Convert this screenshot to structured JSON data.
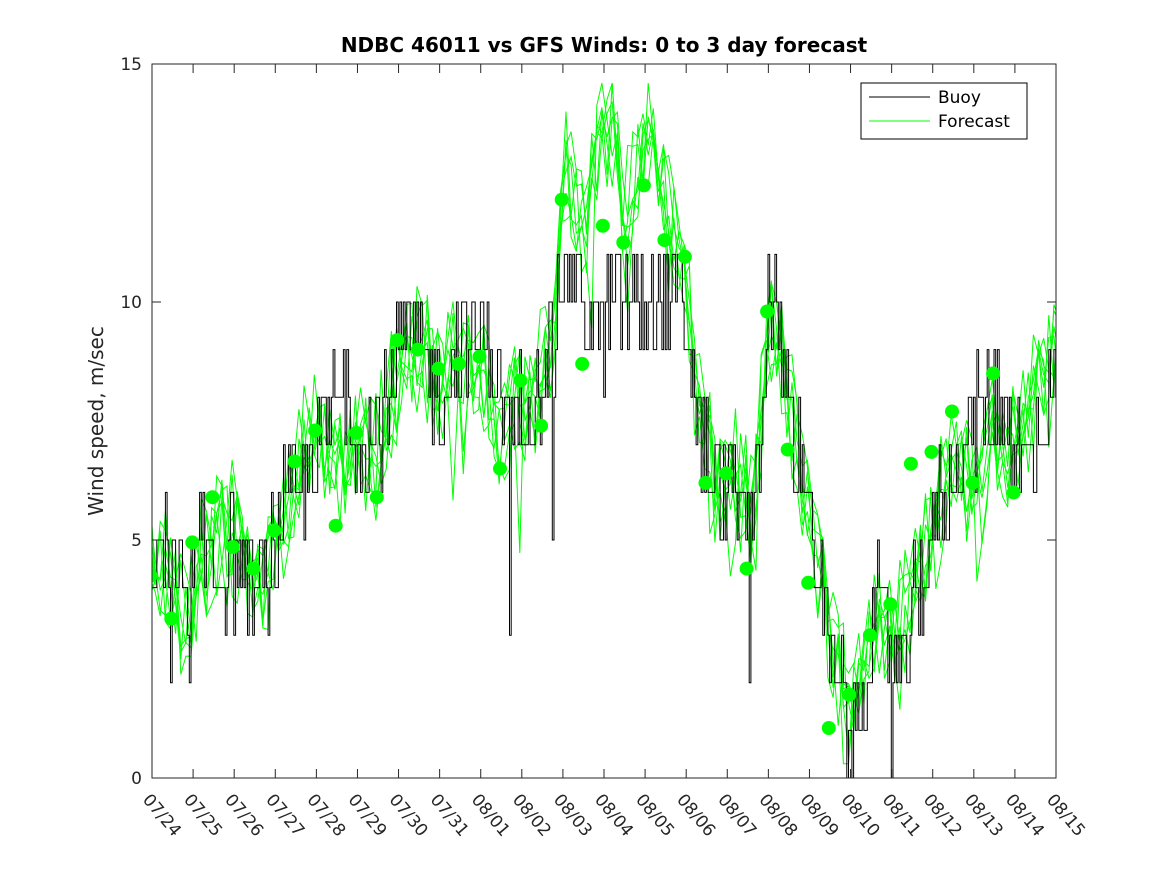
{
  "chart_data": {
    "type": "line",
    "title": "NDBC 46011 vs GFS Winds: 0 to 3 day forecast",
    "xlabel": "",
    "ylabel": "Wind speed, m/sec",
    "xlim": [
      0,
      22
    ],
    "ylim": [
      0,
      15
    ],
    "yticks": [
      0,
      5,
      10,
      15
    ],
    "x_tick_labels": [
      "07/24",
      "07/25",
      "07/26",
      "07/27",
      "07/28",
      "07/29",
      "07/30",
      "07/31",
      "08/01",
      "08/02",
      "08/03",
      "08/04",
      "08/05",
      "08/06",
      "08/07",
      "08/08",
      "08/09",
      "08/10",
      "08/11",
      "08/12",
      "08/13",
      "08/14",
      "08/15"
    ],
    "grid": false,
    "legend": {
      "location": "top-right",
      "entries": [
        "Buoy",
        "Forecast"
      ]
    },
    "colors": {
      "buoy": "#000000",
      "forecast": "#00ff00",
      "marker": "#00ff00"
    },
    "x_units": "days since 07/24 00:00",
    "buoy_anchors": [
      [
        -0.3,
        5
      ],
      [
        0.2,
        5
      ],
      [
        0.6,
        4
      ],
      [
        0.9,
        3.5
      ],
      [
        1.3,
        5
      ],
      [
        1.7,
        4.5
      ],
      [
        2.2,
        4.5
      ],
      [
        2.6,
        3.8
      ],
      [
        3.2,
        5.5
      ],
      [
        3.7,
        6
      ],
      [
        4,
        7
      ],
      [
        4.3,
        7.5
      ],
      [
        4.7,
        8
      ],
      [
        5.2,
        7
      ],
      [
        5.6,
        7.5
      ],
      [
        6,
        9
      ],
      [
        6.5,
        9
      ],
      [
        7,
        8
      ],
      [
        7.4,
        9
      ],
      [
        7.8,
        9
      ],
      [
        8.3,
        9
      ],
      [
        8.7,
        7
      ],
      [
        9.1,
        8
      ],
      [
        9.5,
        8.5
      ],
      [
        9.8,
        9.2
      ],
      [
        10,
        11
      ],
      [
        10.2,
        11
      ],
      [
        10.5,
        10
      ],
      [
        10.8,
        9
      ],
      [
        11.2,
        10
      ],
      [
        11.6,
        10
      ],
      [
        12,
        10
      ],
      [
        12.4,
        10
      ],
      [
        12.8,
        10
      ],
      [
        13.1,
        9
      ],
      [
        13.4,
        7
      ],
      [
        13.8,
        6
      ],
      [
        14.2,
        6
      ],
      [
        14.5,
        5
      ],
      [
        14.8,
        7
      ],
      [
        15,
        10
      ],
      [
        15.3,
        9
      ],
      [
        15.6,
        7
      ],
      [
        15.9,
        6.5
      ],
      [
        16.2,
        4
      ],
      [
        16.5,
        2.5
      ],
      [
        16.8,
        1.5
      ],
      [
        17.1,
        1
      ],
      [
        17.4,
        2.5
      ],
      [
        17.7,
        3.5
      ],
      [
        18,
        2.5
      ],
      [
        18.3,
        2
      ],
      [
        18.6,
        4
      ],
      [
        19,
        5
      ],
      [
        19.4,
        6.5
      ],
      [
        19.8,
        7
      ],
      [
        20.2,
        7.5
      ],
      [
        20.6,
        8
      ],
      [
        21,
        7
      ],
      [
        21.3,
        6.5
      ],
      [
        21.6,
        7.5
      ],
      [
        22,
        8
      ]
    ],
    "forecast_anchors": [
      [
        -0.3,
        5
      ],
      [
        0.3,
        4.5
      ],
      [
        0.8,
        3.2
      ],
      [
        1.2,
        4.5
      ],
      [
        1.8,
        5.5
      ],
      [
        2.3,
        4.8
      ],
      [
        2.7,
        4.2
      ],
      [
        3.2,
        5.5
      ],
      [
        3.6,
        6.8
      ],
      [
        4,
        7.2
      ],
      [
        4.3,
        7
      ],
      [
        4.6,
        6.5
      ],
      [
        5,
        7.5
      ],
      [
        5.4,
        6.5
      ],
      [
        5.8,
        8
      ],
      [
        6.2,
        9
      ],
      [
        6.6,
        9
      ],
      [
        7,
        8.5
      ],
      [
        7.5,
        9
      ],
      [
        8,
        8.8
      ],
      [
        8.4,
        7
      ],
      [
        8.8,
        8
      ],
      [
        9.2,
        8
      ],
      [
        9.5,
        8.5
      ],
      [
        9.8,
        9.5
      ],
      [
        10,
        12.8
      ],
      [
        10.2,
        12.5
      ],
      [
        10.5,
        11.2
      ],
      [
        10.9,
        13.5
      ],
      [
        11.2,
        13.8
      ],
      [
        11.5,
        12
      ],
      [
        11.8,
        12.5
      ],
      [
        12.1,
        13.8
      ],
      [
        12.4,
        12.5
      ],
      [
        12.8,
        10.8
      ],
      [
        13.1,
        9.5
      ],
      [
        13.4,
        7.5
      ],
      [
        13.7,
        6.2
      ],
      [
        14,
        6
      ],
      [
        14.3,
        6.5
      ],
      [
        14.6,
        5.5
      ],
      [
        14.9,
        8.5
      ],
      [
        15.1,
        9.5
      ],
      [
        15.4,
        8.5
      ],
      [
        15.7,
        7
      ],
      [
        16,
        5.5
      ],
      [
        16.3,
        4.2
      ],
      [
        16.6,
        2.8
      ],
      [
        16.9,
        1.6
      ],
      [
        17.2,
        1.8
      ],
      [
        17.5,
        3
      ],
      [
        17.8,
        3.2
      ],
      [
        18.1,
        3
      ],
      [
        18.4,
        3.8
      ],
      [
        18.8,
        5
      ],
      [
        19.2,
        5.8
      ],
      [
        19.6,
        6.5
      ],
      [
        20,
        6.2
      ],
      [
        20.4,
        7
      ],
      [
        20.8,
        6.5
      ],
      [
        21.2,
        7.5
      ],
      [
        21.6,
        8.5
      ],
      [
        22,
        9
      ]
    ],
    "markers": [
      [
        -0.03,
        4.25
      ],
      [
        0.47,
        3.35
      ],
      [
        0.98,
        4.95
      ],
      [
        1.47,
        5.9
      ],
      [
        1.97,
        4.85
      ],
      [
        2.47,
        4.4
      ],
      [
        2.97,
        5.2
      ],
      [
        3.47,
        6.65
      ],
      [
        3.97,
        7.3
      ],
      [
        4.47,
        5.3
      ],
      [
        4.97,
        7.25
      ],
      [
        5.47,
        5.9
      ],
      [
        5.97,
        9.2
      ],
      [
        6.47,
        9.0
      ],
      [
        6.97,
        8.6
      ],
      [
        7.47,
        8.7
      ],
      [
        7.97,
        8.85
      ],
      [
        8.47,
        6.5
      ],
      [
        8.97,
        8.35
      ],
      [
        9.47,
        7.4
      ],
      [
        9.97,
        12.15
      ],
      [
        10.47,
        8.7
      ],
      [
        10.97,
        11.6
      ],
      [
        11.47,
        11.25
      ],
      [
        11.97,
        12.45
      ],
      [
        12.47,
        11.3
      ],
      [
        12.97,
        10.95
      ],
      [
        13.47,
        6.2
      ],
      [
        13.97,
        6.4
      ],
      [
        14.47,
        4.4
      ],
      [
        14.97,
        9.8
      ],
      [
        15.47,
        6.9
      ],
      [
        15.97,
        4.1
      ],
      [
        16.47,
        1.05
      ],
      [
        16.97,
        1.75
      ],
      [
        17.47,
        3.0
      ],
      [
        17.97,
        3.65
      ],
      [
        18.47,
        6.6
      ],
      [
        18.97,
        6.85
      ],
      [
        19.47,
        7.7
      ],
      [
        19.97,
        6.2
      ],
      [
        20.47,
        8.5
      ],
      [
        20.97,
        6.0
      ]
    ]
  }
}
